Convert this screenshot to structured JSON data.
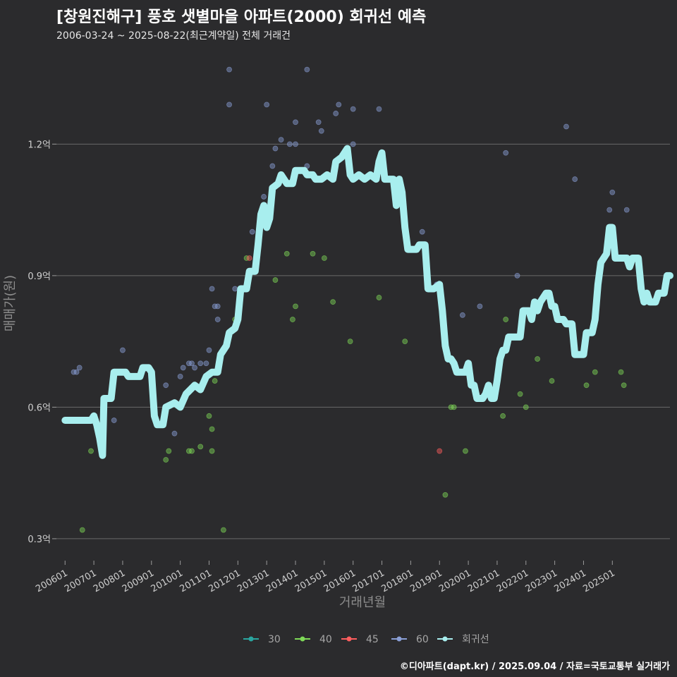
{
  "header": {
    "title": "[창원진해구] 풍호 샛별마을 아파트(2000) 회귀선 예측",
    "subtitle": "2006-03-24 ~ 2025-08-22(최근계약일) 전체 거래건"
  },
  "footer": {
    "credit": "©디아파트(dapt.kr) / 2025.09.04 / 자료=국토교통부 실거래가"
  },
  "chart_data": {
    "type": "scatter",
    "title": "[창원진해구] 풍호 샛별마을 아파트(2000) 회귀선 예측",
    "xlabel": "거래년월",
    "ylabel": "매매가(원)",
    "xlim": [
      2005.7,
      2027.0
    ],
    "ylim": [
      0.25,
      1.4
    ],
    "y_ticks": [
      0.3,
      0.6,
      0.9,
      1.2
    ],
    "y_tick_labels": [
      "0.3억",
      "0.6억",
      "0.9억",
      "1.2억"
    ],
    "x_ticks": [
      2006,
      2007,
      2008,
      2009,
      2010,
      2011,
      2012,
      2013,
      2014,
      2015,
      2016,
      2017,
      2018,
      2019,
      2020,
      2021,
      2022,
      2023,
      2024,
      2025
    ],
    "x_tick_labels": [
      "200601",
      "200701",
      "200801",
      "200901",
      "201001",
      "201101",
      "201201",
      "201301",
      "201401",
      "201501",
      "201601",
      "201701",
      "201801",
      "201901",
      "202001",
      "202101",
      "202201",
      "202301",
      "202401",
      "202501"
    ],
    "grid": true,
    "colors": {
      "30": "#2aa6a0",
      "40": "#7ed957",
      "45": "#ff5e5e",
      "60": "#8a9fd6",
      "regression": "#a8eeee"
    },
    "legend": [
      "30",
      "40",
      "45",
      "60",
      "회귀선"
    ],
    "series": [
      {
        "name": "30",
        "points": []
      },
      {
        "name": "40",
        "points": [
          [
            2006.9,
            0.5
          ],
          [
            2006.6,
            0.32
          ],
          [
            2009.5,
            0.48
          ],
          [
            2009.6,
            0.5
          ],
          [
            2010.3,
            0.5
          ],
          [
            2010.4,
            0.5
          ],
          [
            2010.7,
            0.51
          ],
          [
            2011.0,
            0.58
          ],
          [
            2011.1,
            0.5
          ],
          [
            2011.1,
            0.55
          ],
          [
            2011.2,
            0.66
          ],
          [
            2011.5,
            0.32
          ],
          [
            2011.9,
            0.8
          ],
          [
            2012.3,
            0.94
          ],
          [
            2013.3,
            0.89
          ],
          [
            2013.7,
            0.95
          ],
          [
            2013.9,
            0.8
          ],
          [
            2014.0,
            0.83
          ],
          [
            2014.6,
            0.95
          ],
          [
            2015.0,
            0.94
          ],
          [
            2015.3,
            0.84
          ],
          [
            2015.9,
            0.75
          ],
          [
            2016.9,
            0.85
          ],
          [
            2017.8,
            0.75
          ],
          [
            2019.2,
            0.4
          ],
          [
            2019.4,
            0.6
          ],
          [
            2019.5,
            0.6
          ],
          [
            2019.9,
            0.5
          ],
          [
            2021.2,
            0.58
          ],
          [
            2021.3,
            0.8
          ],
          [
            2021.8,
            0.63
          ],
          [
            2022.0,
            0.6
          ],
          [
            2022.4,
            0.71
          ],
          [
            2022.9,
            0.66
          ],
          [
            2024.1,
            0.65
          ],
          [
            2024.4,
            0.68
          ],
          [
            2025.3,
            0.68
          ],
          [
            2025.4,
            0.65
          ]
        ]
      },
      {
        "name": "45",
        "points": [
          [
            2012.4,
            0.94
          ],
          [
            2019.0,
            0.5
          ]
        ]
      },
      {
        "name": "60",
        "points": [
          [
            2006.3,
            0.68
          ],
          [
            2006.4,
            0.68
          ],
          [
            2006.5,
            0.69
          ],
          [
            2007.7,
            0.57
          ],
          [
            2008.0,
            0.73
          ],
          [
            2009.5,
            0.65
          ],
          [
            2009.8,
            0.54
          ],
          [
            2010.0,
            0.67
          ],
          [
            2010.1,
            0.69
          ],
          [
            2010.3,
            0.7
          ],
          [
            2010.4,
            0.7
          ],
          [
            2010.5,
            0.69
          ],
          [
            2010.7,
            0.7
          ],
          [
            2010.9,
            0.7
          ],
          [
            2011.0,
            0.73
          ],
          [
            2011.1,
            0.87
          ],
          [
            2011.2,
            0.83
          ],
          [
            2011.3,
            0.83
          ],
          [
            2011.3,
            0.8
          ],
          [
            2011.9,
            0.87
          ],
          [
            2011.7,
            1.37
          ],
          [
            2011.7,
            1.29
          ],
          [
            2012.5,
            1.0
          ],
          [
            2012.9,
            1.08
          ],
          [
            2013.0,
            1.29
          ],
          [
            2013.2,
            1.15
          ],
          [
            2013.3,
            1.19
          ],
          [
            2013.5,
            1.21
          ],
          [
            2013.8,
            1.2
          ],
          [
            2014.0,
            1.2
          ],
          [
            2014.0,
            1.25
          ],
          [
            2014.4,
            1.37
          ],
          [
            2014.4,
            1.15
          ],
          [
            2014.8,
            1.25
          ],
          [
            2014.9,
            1.23
          ],
          [
            2015.4,
            1.27
          ],
          [
            2015.5,
            1.29
          ],
          [
            2016.0,
            1.28
          ],
          [
            2016.0,
            1.2
          ],
          [
            2016.9,
            1.28
          ],
          [
            2018.4,
            1.0
          ],
          [
            2018.9,
            0.88
          ],
          [
            2019.8,
            0.81
          ],
          [
            2020.4,
            0.83
          ],
          [
            2021.3,
            1.18
          ],
          [
            2021.7,
            0.9
          ],
          [
            2023.4,
            1.24
          ],
          [
            2023.7,
            1.12
          ],
          [
            2024.9,
            1.05
          ],
          [
            2025.0,
            1.09
          ],
          [
            2025.5,
            1.05
          ]
        ]
      }
    ],
    "regression_line": [
      [
        2006.0,
        0.57
      ],
      [
        2006.9,
        0.57
      ],
      [
        2007.0,
        0.58
      ],
      [
        2007.1,
        0.56
      ],
      [
        2007.2,
        0.53
      ],
      [
        2007.3,
        0.49
      ],
      [
        2007.35,
        0.62
      ],
      [
        2007.6,
        0.62
      ],
      [
        2007.7,
        0.68
      ],
      [
        2008.1,
        0.68
      ],
      [
        2008.2,
        0.67
      ],
      [
        2008.6,
        0.67
      ],
      [
        2008.7,
        0.69
      ],
      [
        2008.9,
        0.69
      ],
      [
        2009.0,
        0.68
      ],
      [
        2009.1,
        0.58
      ],
      [
        2009.2,
        0.56
      ],
      [
        2009.4,
        0.56
      ],
      [
        2009.5,
        0.6
      ],
      [
        2009.8,
        0.61
      ],
      [
        2010.0,
        0.6
      ],
      [
        2010.2,
        0.63
      ],
      [
        2010.5,
        0.65
      ],
      [
        2010.7,
        0.64
      ],
      [
        2010.9,
        0.67
      ],
      [
        2011.1,
        0.68
      ],
      [
        2011.3,
        0.68
      ],
      [
        2011.4,
        0.72
      ],
      [
        2011.6,
        0.74
      ],
      [
        2011.7,
        0.77
      ],
      [
        2011.9,
        0.78
      ],
      [
        2012.0,
        0.8
      ],
      [
        2012.1,
        0.87
      ],
      [
        2012.3,
        0.87
      ],
      [
        2012.4,
        0.91
      ],
      [
        2012.6,
        0.91
      ],
      [
        2012.7,
        0.97
      ],
      [
        2012.8,
        1.04
      ],
      [
        2012.9,
        1.06
      ],
      [
        2013.0,
        1.01
      ],
      [
        2013.1,
        1.03
      ],
      [
        2013.2,
        1.1
      ],
      [
        2013.4,
        1.11
      ],
      [
        2013.5,
        1.13
      ],
      [
        2013.7,
        1.11
      ],
      [
        2013.9,
        1.11
      ],
      [
        2014.0,
        1.14
      ],
      [
        2014.3,
        1.14
      ],
      [
        2014.4,
        1.13
      ],
      [
        2014.6,
        1.13
      ],
      [
        2014.7,
        1.12
      ],
      [
        2014.9,
        1.12
      ],
      [
        2015.1,
        1.13
      ],
      [
        2015.3,
        1.12
      ],
      [
        2015.4,
        1.16
      ],
      [
        2015.6,
        1.17
      ],
      [
        2015.8,
        1.19
      ],
      [
        2015.9,
        1.13
      ],
      [
        2016.0,
        1.12
      ],
      [
        2016.2,
        1.13
      ],
      [
        2016.4,
        1.12
      ],
      [
        2016.6,
        1.13
      ],
      [
        2016.8,
        1.12
      ],
      [
        2016.9,
        1.16
      ],
      [
        2017.0,
        1.18
      ],
      [
        2017.1,
        1.12
      ],
      [
        2017.4,
        1.12
      ],
      [
        2017.5,
        1.06
      ],
      [
        2017.6,
        1.12
      ],
      [
        2017.7,
        1.09
      ],
      [
        2017.8,
        1.01
      ],
      [
        2017.9,
        0.96
      ],
      [
        2018.2,
        0.96
      ],
      [
        2018.3,
        0.97
      ],
      [
        2018.5,
        0.97
      ],
      [
        2018.6,
        0.87
      ],
      [
        2018.8,
        0.87
      ],
      [
        2019.0,
        0.88
      ],
      [
        2019.1,
        0.82
      ],
      [
        2019.2,
        0.74
      ],
      [
        2019.3,
        0.71
      ],
      [
        2019.4,
        0.71
      ],
      [
        2019.5,
        0.7
      ],
      [
        2019.6,
        0.68
      ],
      [
        2019.9,
        0.68
      ],
      [
        2020.0,
        0.7
      ],
      [
        2020.1,
        0.65
      ],
      [
        2020.2,
        0.65
      ],
      [
        2020.3,
        0.62
      ],
      [
        2020.5,
        0.62
      ],
      [
        2020.6,
        0.63
      ],
      [
        2020.7,
        0.65
      ],
      [
        2020.8,
        0.62
      ],
      [
        2020.9,
        0.62
      ],
      [
        2021.0,
        0.66
      ],
      [
        2021.1,
        0.71
      ],
      [
        2021.2,
        0.73
      ],
      [
        2021.3,
        0.73
      ],
      [
        2021.4,
        0.76
      ],
      [
        2021.6,
        0.76
      ],
      [
        2021.8,
        0.76
      ],
      [
        2021.9,
        0.82
      ],
      [
        2022.1,
        0.82
      ],
      [
        2022.2,
        0.8
      ],
      [
        2022.3,
        0.84
      ],
      [
        2022.4,
        0.82
      ],
      [
        2022.5,
        0.84
      ],
      [
        2022.6,
        0.85
      ],
      [
        2022.7,
        0.86
      ],
      [
        2022.8,
        0.86
      ],
      [
        2022.9,
        0.83
      ],
      [
        2023.0,
        0.83
      ],
      [
        2023.1,
        0.8
      ],
      [
        2023.3,
        0.8
      ],
      [
        2023.4,
        0.79
      ],
      [
        2023.6,
        0.79
      ],
      [
        2023.7,
        0.72
      ],
      [
        2024.0,
        0.72
      ],
      [
        2024.1,
        0.77
      ],
      [
        2024.3,
        0.77
      ],
      [
        2024.4,
        0.8
      ],
      [
        2024.5,
        0.88
      ],
      [
        2024.6,
        0.93
      ],
      [
        2024.8,
        0.95
      ],
      [
        2024.9,
        1.01
      ],
      [
        2025.0,
        1.01
      ],
      [
        2025.1,
        0.94
      ],
      [
        2025.5,
        0.94
      ],
      [
        2025.6,
        0.92
      ],
      [
        2025.7,
        0.94
      ],
      [
        2025.9,
        0.94
      ],
      [
        2026.0,
        0.87
      ],
      [
        2026.1,
        0.84
      ],
      [
        2026.2,
        0.86
      ],
      [
        2026.3,
        0.84
      ],
      [
        2026.5,
        0.84
      ],
      [
        2026.6,
        0.86
      ],
      [
        2026.8,
        0.86
      ],
      [
        2026.9,
        0.9
      ],
      [
        2027.0,
        0.9
      ]
    ]
  }
}
